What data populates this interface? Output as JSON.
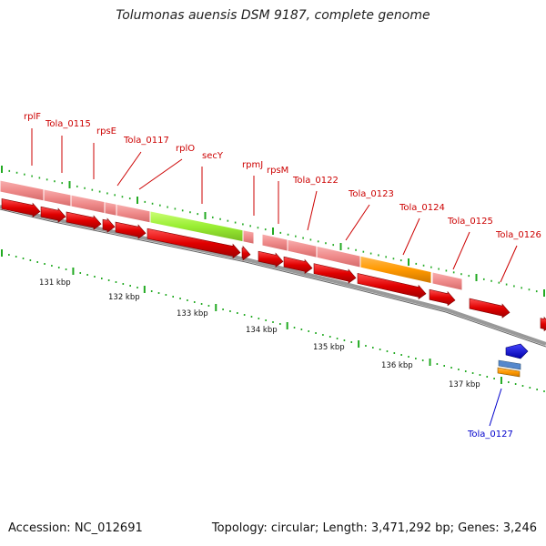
{
  "title": "Tolumonas auensis DSM 9187, complete genome",
  "footer": {
    "accession": "Accession: NC_012691",
    "summary": "Topology: circular; Length: 3,471,292 bp; Genes: 3,246"
  },
  "colors": {
    "gene": "#e00000",
    "cds": "#f09090",
    "highlight_green": "#99ee33",
    "highlight_orange": "#ff9900",
    "rna_blue": "#0000cc",
    "tick": "#22aa22",
    "backbone": "#888888",
    "label_red": "#cc0000",
    "label_blue": "#0000cc"
  },
  "scale_labels": [
    "131 kbp",
    "132 kbp",
    "133 kbp",
    "134 kbp",
    "135 kbp",
    "136 kbp",
    "137 kbp"
  ],
  "gene_labels": [
    "rplF",
    "Tola_0115",
    "rpsE",
    "Tola_0117",
    "rplO",
    "secY",
    "rpmJ",
    "rpsM",
    "Tola_0122",
    "Tola_0123",
    "Tola_0124",
    "Tola_0125",
    "Tola_0126"
  ],
  "blue_label": "Tola_0127"
}
